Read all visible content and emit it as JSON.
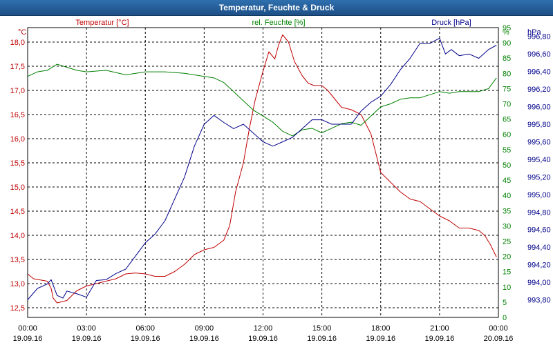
{
  "window": {
    "title": "Temperatur, Feuchte & Druck"
  },
  "colors": {
    "temperature": "#c00000",
    "humidity": "#008000",
    "pressure": "#00008b"
  },
  "chart_data": {
    "type": "line",
    "x_ticks": [
      {
        "hour": 0,
        "time": "00:00",
        "date": "19.09.16"
      },
      {
        "hour": 3,
        "time": "03:00",
        "date": "19.09.16"
      },
      {
        "hour": 6,
        "time": "06:00",
        "date": "19.09.16"
      },
      {
        "hour": 9,
        "time": "09:00",
        "date": "19.09.16"
      },
      {
        "hour": 12,
        "time": "12:00",
        "date": "19.09.16"
      },
      {
        "hour": 15,
        "time": "15:00",
        "date": "19.09.16"
      },
      {
        "hour": 18,
        "time": "18:00",
        "date": "19.09.16"
      },
      {
        "hour": 21,
        "time": "21:00",
        "date": "19.09.16"
      },
      {
        "hour": 24,
        "time": "00:00",
        "date": "20.09.16"
      }
    ],
    "axes": {
      "temperature": {
        "label": "Temperatur [°C]",
        "unit": "°C",
        "range": [
          12.3,
          18.3
        ],
        "ticks": [
          "12,5",
          "13,0",
          "13,5",
          "14,0",
          "14,5",
          "15,0",
          "15,5",
          "16,0",
          "16,5",
          "17,0",
          "17,5",
          "18,0"
        ]
      },
      "humidity": {
        "label": "rel. Feuchte [%]",
        "unit": "%",
        "range": [
          0,
          95
        ],
        "ticks": [
          "0",
          "5",
          "10",
          "15",
          "20",
          "25",
          "30",
          "35",
          "40",
          "45",
          "50",
          "55",
          "60",
          "65",
          "70",
          "75",
          "80",
          "85",
          "90",
          "95"
        ]
      },
      "pressure": {
        "label": "Druck [hPa]",
        "unit": "hPa",
        "range": [
          993.6,
          996.9
        ],
        "ticks": [
          "993,80",
          "994,00",
          "994,20",
          "994,40",
          "994,60",
          "994,80",
          "995,00",
          "995,20",
          "995,40",
          "995,60",
          "995,80",
          "996,00",
          "996,20",
          "996,40",
          "996,60",
          "996,80"
        ]
      }
    },
    "grid": true,
    "series": [
      {
        "key": "temperature",
        "axis": "temperature",
        "points": [
          [
            0,
            13.2
          ],
          [
            0.3,
            13.1
          ],
          [
            1,
            13.05
          ],
          [
            1.2,
            12.9
          ],
          [
            1.3,
            12.7
          ],
          [
            1.5,
            12.6
          ],
          [
            2,
            12.65
          ],
          [
            2.5,
            12.85
          ],
          [
            3,
            12.95
          ],
          [
            3.5,
            13.0
          ],
          [
            4,
            13.05
          ],
          [
            4.5,
            13.1
          ],
          [
            5,
            13.2
          ],
          [
            5.5,
            13.22
          ],
          [
            6,
            13.2
          ],
          [
            6.5,
            13.15
          ],
          [
            7,
            13.15
          ],
          [
            7.5,
            13.25
          ],
          [
            8,
            13.4
          ],
          [
            8.5,
            13.6
          ],
          [
            9,
            13.7
          ],
          [
            9.5,
            13.75
          ],
          [
            10,
            13.9
          ],
          [
            10.3,
            14.2
          ],
          [
            10.6,
            14.9
          ],
          [
            11,
            15.5
          ],
          [
            11.3,
            16.2
          ],
          [
            11.6,
            16.8
          ],
          [
            12,
            17.4
          ],
          [
            12.3,
            17.8
          ],
          [
            12.6,
            17.65
          ],
          [
            12.8,
            17.95
          ],
          [
            13,
            18.15
          ],
          [
            13.3,
            18.0
          ],
          [
            13.6,
            17.6
          ],
          [
            14,
            17.3
          ],
          [
            14.3,
            17.15
          ],
          [
            14.6,
            17.1
          ],
          [
            15,
            17.1
          ],
          [
            15.3,
            17.0
          ],
          [
            15.6,
            16.85
          ],
          [
            16,
            16.65
          ],
          [
            16.5,
            16.6
          ],
          [
            17,
            16.5
          ],
          [
            17.5,
            16.1
          ],
          [
            18,
            15.3
          ],
          [
            18.5,
            15.1
          ],
          [
            19,
            14.9
          ],
          [
            19.5,
            14.75
          ],
          [
            20,
            14.7
          ],
          [
            20.5,
            14.55
          ],
          [
            21,
            14.4
          ],
          [
            21.5,
            14.3
          ],
          [
            22,
            14.15
          ],
          [
            22.5,
            14.15
          ],
          [
            23,
            14.1
          ],
          [
            23.3,
            14.0
          ],
          [
            23.6,
            13.8
          ],
          [
            23.9,
            13.55
          ]
        ]
      },
      {
        "key": "humidity",
        "axis": "humidity",
        "points": [
          [
            0,
            79
          ],
          [
            0.5,
            80.5
          ],
          [
            1,
            81
          ],
          [
            1.5,
            83
          ],
          [
            2,
            82
          ],
          [
            2.5,
            81
          ],
          [
            3,
            80.5
          ],
          [
            4,
            81
          ],
          [
            5,
            79.5
          ],
          [
            6,
            80.5
          ],
          [
            7,
            80.5
          ],
          [
            8,
            80
          ],
          [
            9,
            79
          ],
          [
            9.5,
            78.5
          ],
          [
            10,
            77
          ],
          [
            10.5,
            74
          ],
          [
            11,
            71
          ],
          [
            11.5,
            68
          ],
          [
            12,
            66
          ],
          [
            12.5,
            64
          ],
          [
            13,
            61
          ],
          [
            13.5,
            59.5
          ],
          [
            14,
            61.5
          ],
          [
            14.5,
            62
          ],
          [
            15,
            60.5
          ],
          [
            15.5,
            62
          ],
          [
            16,
            63.5
          ],
          [
            16.5,
            64
          ],
          [
            17,
            63
          ],
          [
            17.5,
            66
          ],
          [
            18,
            69
          ],
          [
            18.5,
            70
          ],
          [
            19,
            71.5
          ],
          [
            19.5,
            72
          ],
          [
            20,
            72
          ],
          [
            20.5,
            73
          ],
          [
            21,
            74
          ],
          [
            21.5,
            73.5
          ],
          [
            22,
            74
          ],
          [
            22.5,
            74
          ],
          [
            23,
            74
          ],
          [
            23.5,
            75
          ],
          [
            23.9,
            78.5
          ]
        ]
      },
      {
        "key": "pressure",
        "axis": "pressure",
        "points": [
          [
            0,
            993.8
          ],
          [
            0.5,
            993.93
          ],
          [
            1,
            993.98
          ],
          [
            1.2,
            994.03
          ],
          [
            1.5,
            993.85
          ],
          [
            1.8,
            993.82
          ],
          [
            2,
            993.9
          ],
          [
            2.5,
            993.87
          ],
          [
            3,
            993.83
          ],
          [
            3.5,
            994.02
          ],
          [
            4,
            994.03
          ],
          [
            4.5,
            994.1
          ],
          [
            5,
            994.15
          ],
          [
            5.5,
            994.3
          ],
          [
            6,
            994.45
          ],
          [
            6.5,
            994.55
          ],
          [
            7,
            994.7
          ],
          [
            7.5,
            994.95
          ],
          [
            8,
            995.2
          ],
          [
            8.5,
            995.55
          ],
          [
            9,
            995.8
          ],
          [
            9.5,
            995.9
          ],
          [
            10,
            995.82
          ],
          [
            10.5,
            995.75
          ],
          [
            11,
            995.8
          ],
          [
            11.5,
            995.7
          ],
          [
            12,
            995.6
          ],
          [
            12.5,
            995.55
          ],
          [
            13,
            995.6
          ],
          [
            13.5,
            995.65
          ],
          [
            14,
            995.75
          ],
          [
            14.5,
            995.85
          ],
          [
            15,
            995.85
          ],
          [
            15.5,
            995.8
          ],
          [
            16,
            995.8
          ],
          [
            16.5,
            995.8
          ],
          [
            17,
            995.95
          ],
          [
            17.5,
            996.05
          ],
          [
            18,
            996.12
          ],
          [
            18.5,
            996.25
          ],
          [
            19,
            996.42
          ],
          [
            19.5,
            996.55
          ],
          [
            20,
            996.72
          ],
          [
            20.5,
            996.72
          ],
          [
            21,
            996.78
          ],
          [
            21.3,
            996.6
          ],
          [
            21.6,
            996.65
          ],
          [
            22,
            996.58
          ],
          [
            22.5,
            996.6
          ],
          [
            23,
            996.55
          ],
          [
            23.5,
            996.65
          ],
          [
            23.9,
            996.7
          ]
        ]
      }
    ]
  }
}
